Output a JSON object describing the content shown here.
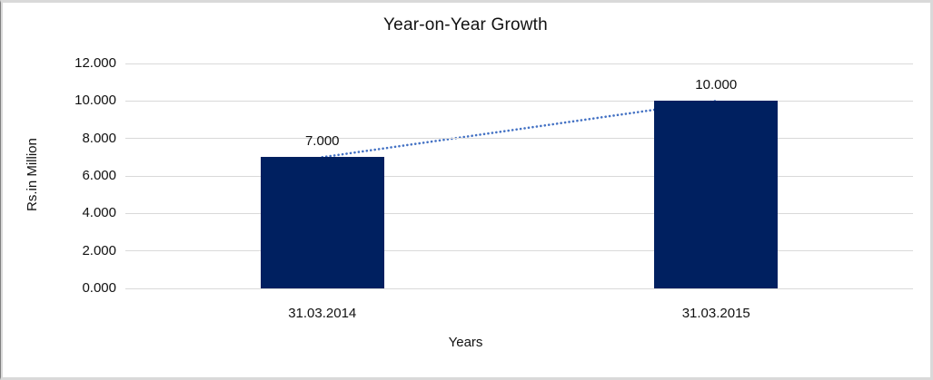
{
  "chart_data": {
    "type": "bar",
    "title": "Year-on-Year Growth",
    "xlabel": "Years",
    "ylabel": "Rs.in Million",
    "categories": [
      "31.03.2014",
      "31.03.2015"
    ],
    "values": [
      7,
      10
    ],
    "value_labels": [
      "7.000",
      "10.000"
    ],
    "ylim": [
      0,
      12
    ],
    "ytick_step": 2,
    "ytick_labels": [
      "0.000",
      "2.000",
      "4.000",
      "6.000",
      "8.000",
      "10.000",
      "12.000"
    ],
    "grid": true,
    "legend_position": "none",
    "trendline": {
      "style": "dotted",
      "connects": "bar tops",
      "color": "#4472C4"
    },
    "colors": {
      "bar": "#002060",
      "gridline": "#d9d9d9",
      "text": "#111111",
      "frame_border": "#d9d9d9"
    }
  }
}
